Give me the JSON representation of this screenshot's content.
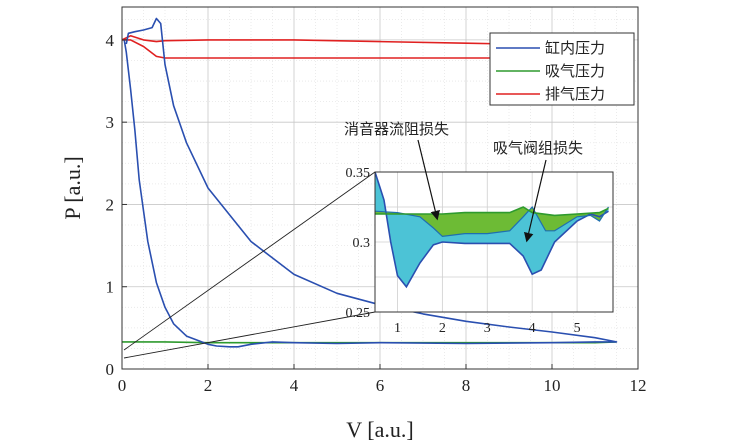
{
  "chart_data": {
    "type": "line",
    "title": "",
    "xlabel": "V [a.u.]",
    "ylabel": "P [a.u.]",
    "xlim": [
      0,
      12
    ],
    "ylim": [
      0,
      4.4
    ],
    "xticks": [
      "0",
      "2",
      "4",
      "6",
      "8",
      "10",
      "12"
    ],
    "yticks": [
      "0",
      "1",
      "2",
      "3",
      "4"
    ],
    "grid": true,
    "legend_placement": "top-right",
    "series": [
      {
        "name": "缸内压力",
        "color": "#2a4fb0",
        "x": [
          0.1,
          0.15,
          0.3,
          0.5,
          0.7,
          0.8,
          0.9,
          1.0,
          1.2,
          1.5,
          2.0,
          3.0,
          4.0,
          5.0,
          6.0,
          7.0,
          8.0,
          9.0,
          10.0,
          11.0,
          11.5,
          11.0,
          10.0,
          8.0,
          6.0,
          5.0,
          4.0,
          3.5,
          3.0,
          2.7,
          2.5,
          2.2,
          2.0,
          1.5,
          1.2,
          1.0,
          0.8,
          0.6,
          0.4,
          0.3,
          0.2,
          0.1,
          0.05
        ],
        "y": [
          3.95,
          4.08,
          4.1,
          4.12,
          4.15,
          4.26,
          4.2,
          3.7,
          3.2,
          2.75,
          2.2,
          1.55,
          1.15,
          0.92,
          0.78,
          0.67,
          0.58,
          0.51,
          0.45,
          0.38,
          0.33,
          0.33,
          0.32,
          0.31,
          0.32,
          0.31,
          0.32,
          0.33,
          0.3,
          0.27,
          0.27,
          0.28,
          0.3,
          0.4,
          0.55,
          0.75,
          1.05,
          1.55,
          2.3,
          2.9,
          3.4,
          3.85,
          4.0
        ]
      },
      {
        "name": "吸气压力",
        "color": "#2e9a2e",
        "x": [
          0,
          1,
          2,
          3,
          4,
          5,
          6,
          7,
          8,
          9,
          10,
          11,
          11.5
        ],
        "y": [
          0.33,
          0.33,
          0.32,
          0.32,
          0.32,
          0.32,
          0.32,
          0.32,
          0.32,
          0.32,
          0.32,
          0.32,
          0.33
        ]
      },
      {
        "name": "排气压力",
        "color": "#e02020",
        "x": [
          0,
          0.2,
          0.5,
          0.8,
          1.0,
          2.0,
          4.0,
          6.0,
          8.0,
          10.0,
          11.5,
          11.5,
          10.0,
          8.0,
          6.0,
          4.0,
          2.0,
          1.0,
          0.8,
          0.5,
          0.2,
          0
        ],
        "y": [
          4.0,
          4.05,
          4.0,
          3.98,
          3.99,
          4.0,
          4.0,
          3.98,
          3.96,
          3.94,
          3.93,
          3.78,
          3.78,
          3.78,
          3.78,
          3.78,
          3.78,
          3.78,
          3.8,
          3.92,
          4.0,
          4.0
        ]
      }
    ],
    "inset": {
      "xlim": [
        0.5,
        5.8
      ],
      "ylim": [
        0.25,
        0.35
      ],
      "xticks": [
        "1",
        "2",
        "3",
        "4",
        "5"
      ],
      "yticks": [
        "0.25",
        "0.3",
        "0.35"
      ],
      "suction_line": {
        "x": [
          0.5,
          1.0,
          1.5,
          2.0,
          2.5,
          3.0,
          3.5,
          3.8,
          4.0,
          4.5,
          5.0,
          5.5,
          5.7
        ],
        "y": [
          0.32,
          0.32,
          0.32,
          0.32,
          0.321,
          0.321,
          0.321,
          0.325,
          0.321,
          0.319,
          0.32,
          0.321,
          0.324
        ]
      },
      "cylinder_lower": {
        "x": [
          0.5,
          0.7,
          0.85,
          1.0,
          1.2,
          1.5,
          1.8,
          2.0,
          2.5,
          3.0,
          3.5,
          3.8,
          4.0,
          4.2,
          4.5,
          5.0,
          5.3,
          5.5,
          5.7
        ],
        "y": [
          0.35,
          0.33,
          0.3,
          0.276,
          0.268,
          0.285,
          0.298,
          0.3,
          0.299,
          0.299,
          0.299,
          0.29,
          0.277,
          0.28,
          0.3,
          0.315,
          0.32,
          0.318,
          0.322
        ]
      },
      "cylinder_upper": {
        "x": [
          0.5,
          1.0,
          1.5,
          1.8,
          2.0,
          2.5,
          3.0,
          3.5,
          3.8,
          4.0,
          4.3,
          4.5,
          5.0,
          5.3,
          5.5,
          5.7
        ],
        "y": [
          0.322,
          0.321,
          0.318,
          0.31,
          0.304,
          0.306,
          0.306,
          0.308,
          0.318,
          0.325,
          0.308,
          0.308,
          0.318,
          0.319,
          0.315,
          0.325
        ]
      },
      "annotations": [
        "消音器流阻损失",
        "吸气阀组损失"
      ]
    }
  }
}
